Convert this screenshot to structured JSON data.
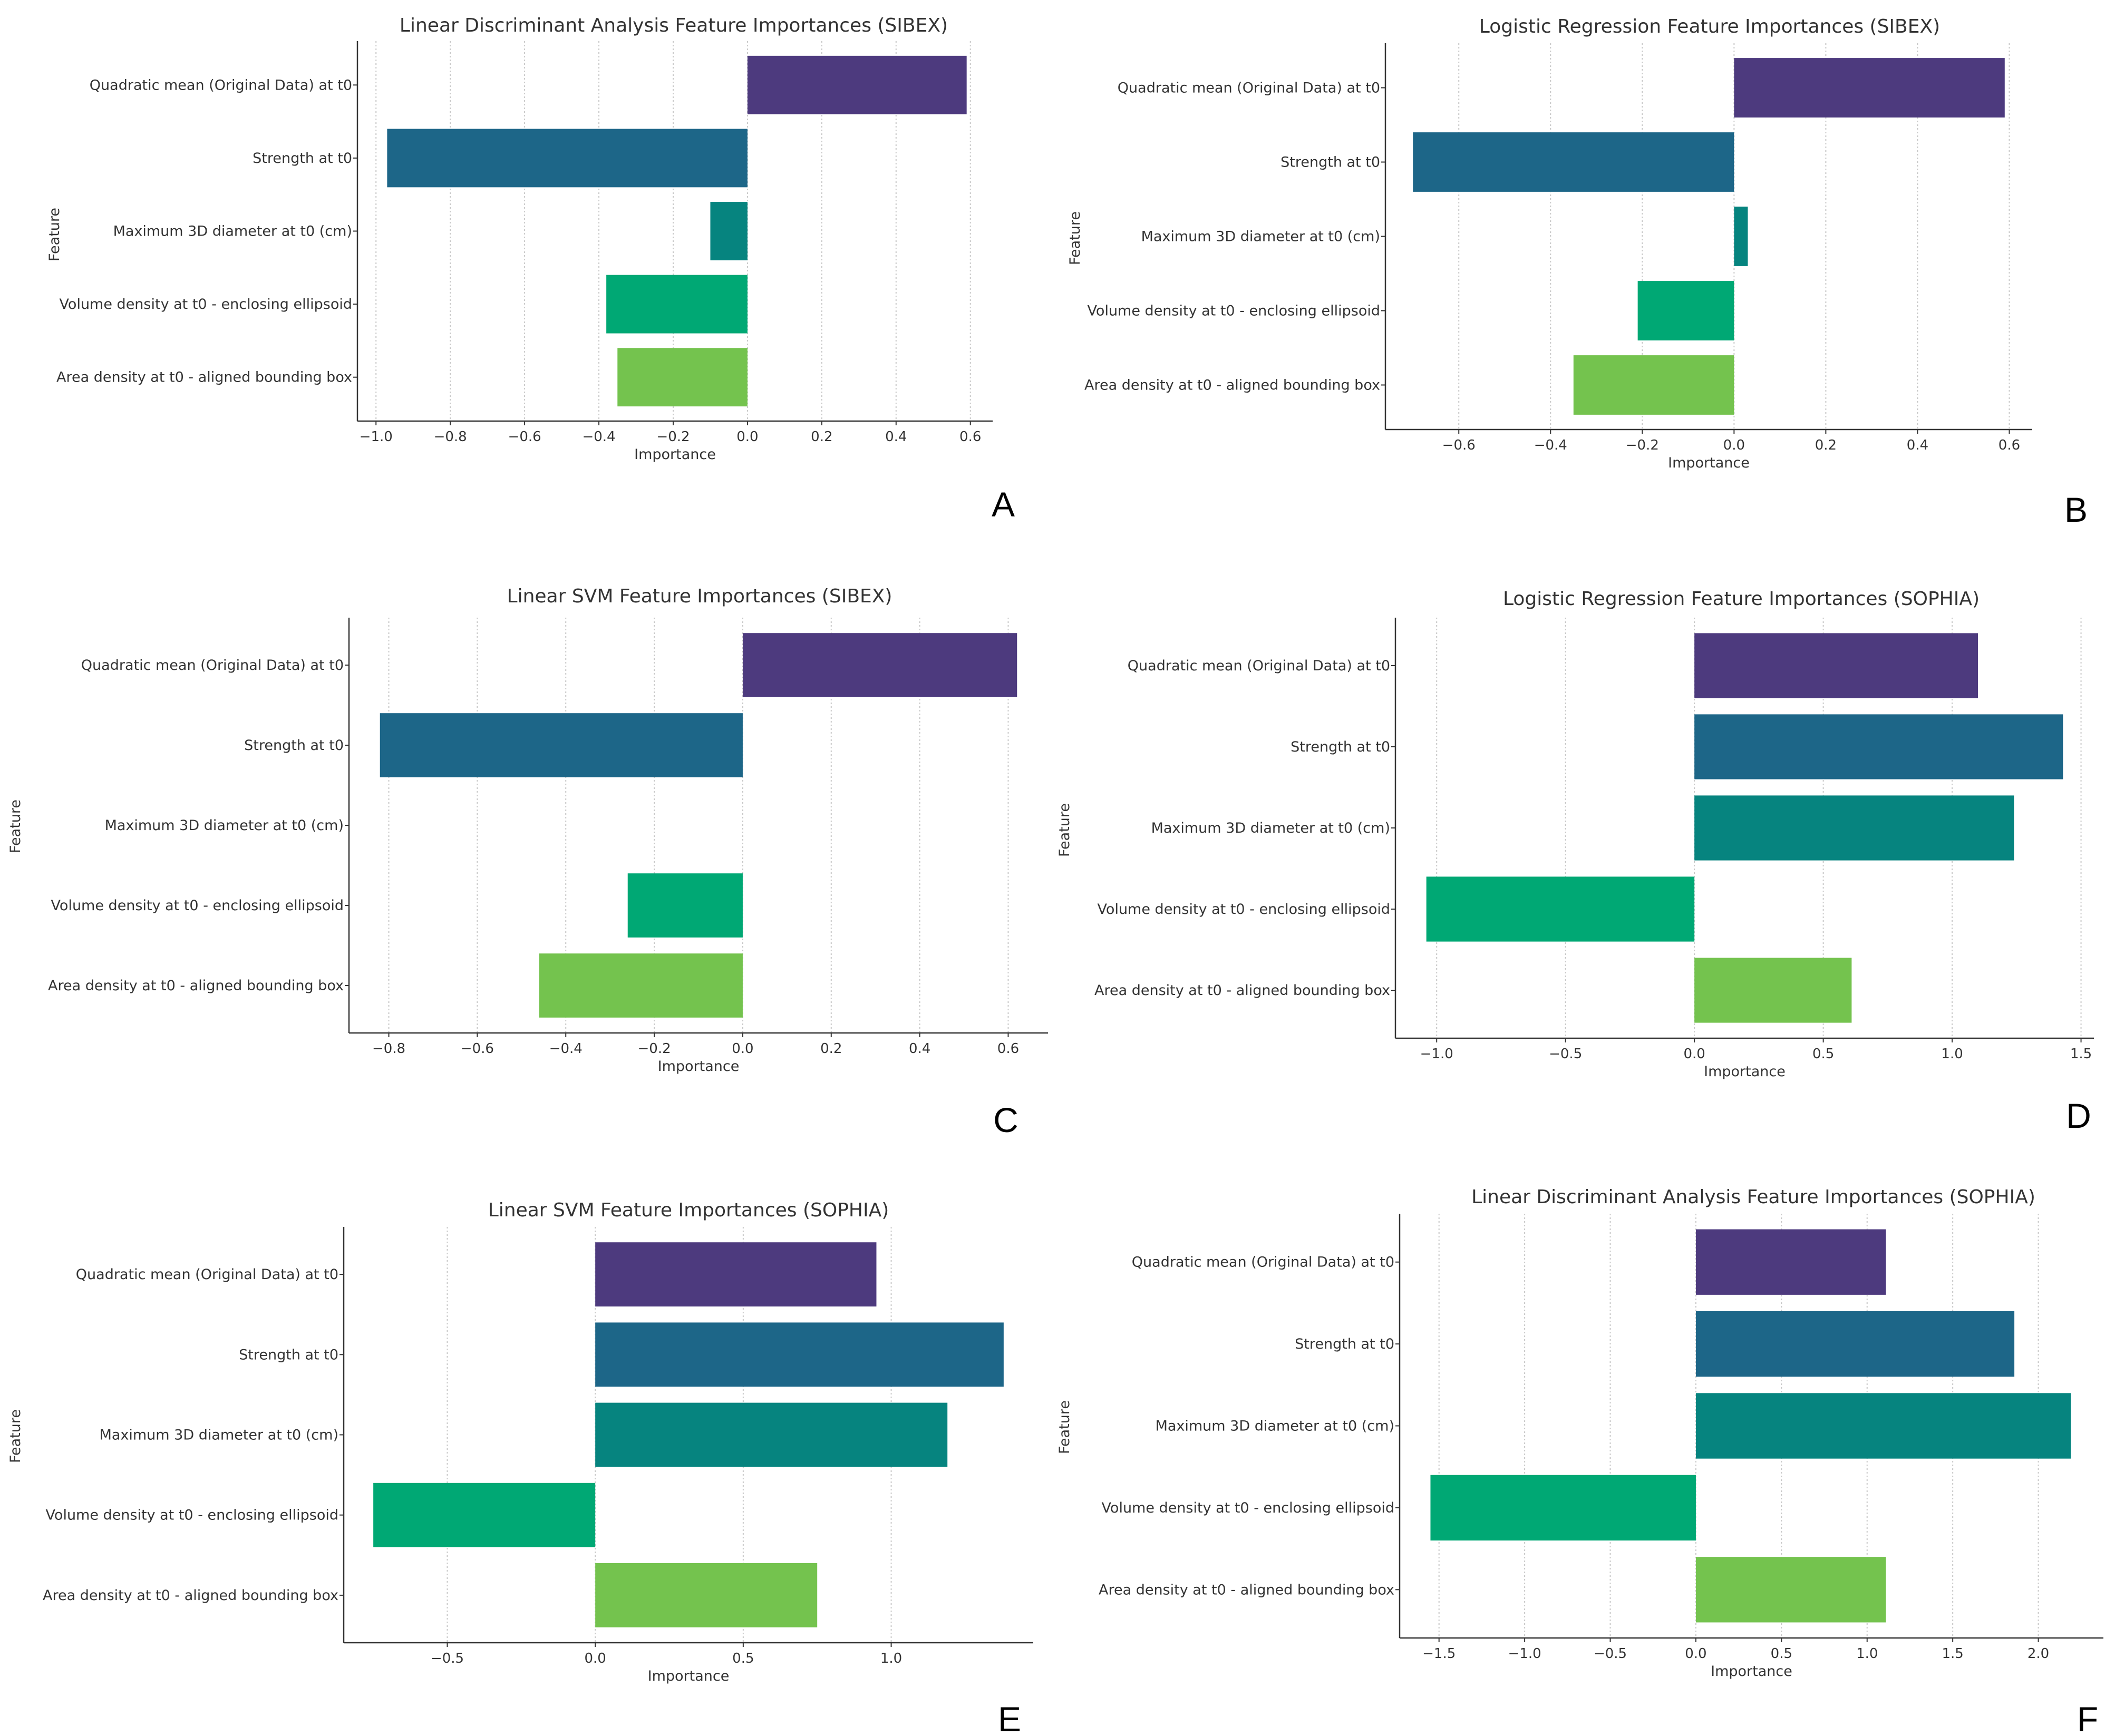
{
  "panel_labels": [
    "A",
    "B",
    "C",
    "D",
    "E",
    "F"
  ],
  "colors": [
    "#4d3a7e",
    "#1d6688",
    "#06847f",
    "#00a874",
    "#74c34e"
  ],
  "chart_data": [
    {
      "type": "bar",
      "orientation": "horizontal",
      "panel": "A",
      "title": "Linear Discriminant Analysis Feature Importances (SIBEX)",
      "xlabel": "Importance",
      "ylabel": "Feature",
      "categories": [
        "Quadratic mean (Original Data) at t0",
        "Strength at t0",
        "Maximum 3D diameter at t0 (cm)",
        "Volume density at t0 - enclosing ellipsoid",
        "Area density at t0 - aligned bounding box"
      ],
      "values": [
        0.59,
        -0.97,
        -0.1,
        -0.38,
        -0.35
      ],
      "xlim": [
        -1.05,
        0.66
      ],
      "ticks": [
        -1.0,
        -0.8,
        -0.6,
        -0.4,
        -0.2,
        0.0,
        0.2,
        0.4,
        0.6
      ],
      "tick_labels": [
        "−1.0",
        "−0.8",
        "−0.6",
        "−0.4",
        "−0.2",
        "0.0",
        "0.2",
        "0.4",
        "0.6"
      ],
      "grid": true
    },
    {
      "type": "bar",
      "orientation": "horizontal",
      "panel": "B",
      "title": "Logistic Regression Feature Importances (SIBEX)",
      "xlabel": "Importance",
      "ylabel": "Feature",
      "categories": [
        "Quadratic mean (Original Data) at t0",
        "Strength at t0",
        "Maximum 3D diameter at t0 (cm)",
        "Volume density at t0 - enclosing ellipsoid",
        "Area density at t0 - aligned bounding box"
      ],
      "values": [
        0.59,
        -0.7,
        0.03,
        -0.21,
        -0.35
      ],
      "xlim": [
        -0.76,
        0.65
      ],
      "ticks": [
        -0.6,
        -0.4,
        -0.2,
        0.0,
        0.2,
        0.4,
        0.6
      ],
      "tick_labels": [
        "−0.6",
        "−0.4",
        "−0.2",
        "0.0",
        "0.2",
        "0.4",
        "0.6"
      ],
      "grid": true
    },
    {
      "type": "bar",
      "orientation": "horizontal",
      "panel": "C",
      "title": "Linear SVM Feature Importances (SIBEX)",
      "xlabel": "Importance",
      "ylabel": "Feature",
      "categories": [
        "Quadratic mean (Original Data) at t0",
        "Strength at t0",
        "Maximum 3D diameter at t0 (cm)",
        "Volume density at t0 - enclosing ellipsoid",
        "Area density at t0 - aligned bounding box"
      ],
      "values": [
        0.62,
        -0.82,
        0.0,
        -0.26,
        -0.46
      ],
      "xlim": [
        -0.89,
        0.69
      ],
      "ticks": [
        -0.8,
        -0.6,
        -0.4,
        -0.2,
        0.0,
        0.2,
        0.4,
        0.6
      ],
      "tick_labels": [
        "−0.8",
        "−0.6",
        "−0.4",
        "−0.2",
        "0.0",
        "0.2",
        "0.4",
        "0.6"
      ],
      "grid": true
    },
    {
      "type": "bar",
      "orientation": "horizontal",
      "panel": "D",
      "title": "Logistic Regression Feature Importances (SOPHIA)",
      "xlabel": "Importance",
      "ylabel": "Feature",
      "categories": [
        "Quadratic mean (Original Data) at t0",
        "Strength at t0",
        "Maximum 3D diameter at t0 (cm)",
        "Volume density at t0 - enclosing ellipsoid",
        "Area density at t0 - aligned bounding box"
      ],
      "values": [
        1.1,
        1.43,
        1.24,
        -1.04,
        0.61
      ],
      "xlim": [
        -1.16,
        1.55
      ],
      "ticks": [
        -1.0,
        -0.5,
        0.0,
        0.5,
        1.0,
        1.5
      ],
      "tick_labels": [
        "−1.0",
        "−0.5",
        "0.0",
        "0.5",
        "1.0",
        "1.5"
      ],
      "grid": true
    },
    {
      "type": "bar",
      "orientation": "horizontal",
      "panel": "E",
      "title": "Linear SVM Feature Importances (SOPHIA)",
      "xlabel": "Importance",
      "ylabel": "Feature",
      "categories": [
        "Quadratic mean (Original Data) at t0",
        "Strength at t0",
        "Maximum 3D diameter at t0 (cm)",
        "Volume density at t0 - enclosing ellipsoid",
        "Area density at t0 - aligned bounding box"
      ],
      "values": [
        0.95,
        1.38,
        1.19,
        -0.75,
        0.75
      ],
      "xlim": [
        -0.85,
        1.48
      ],
      "ticks": [
        -0.5,
        0.0,
        0.5,
        1.0
      ],
      "tick_labels": [
        "−0.5",
        "0.0",
        "0.5",
        "1.0"
      ],
      "grid": true
    },
    {
      "type": "bar",
      "orientation": "horizontal",
      "panel": "F",
      "title": "Linear Discriminant Analysis Feature Importances (SOPHIA)",
      "xlabel": "Importance",
      "ylabel": "Feature",
      "categories": [
        "Quadratic mean (Original Data) at t0",
        "Strength at t0",
        "Maximum 3D diameter at t0 (cm)",
        "Volume density at t0 - enclosing ellipsoid",
        "Area density at t0 - aligned bounding box"
      ],
      "values": [
        1.11,
        1.86,
        2.19,
        -1.55,
        1.11
      ],
      "xlim": [
        -1.73,
        2.38
      ],
      "ticks": [
        -1.5,
        -1.0,
        -0.5,
        0.0,
        0.5,
        1.0,
        1.5,
        2.0
      ],
      "tick_labels": [
        "−1.5",
        "−1.0",
        "−0.5",
        "0.0",
        "0.5",
        "1.0",
        "1.5",
        "2.0"
      ],
      "grid": true
    }
  ]
}
